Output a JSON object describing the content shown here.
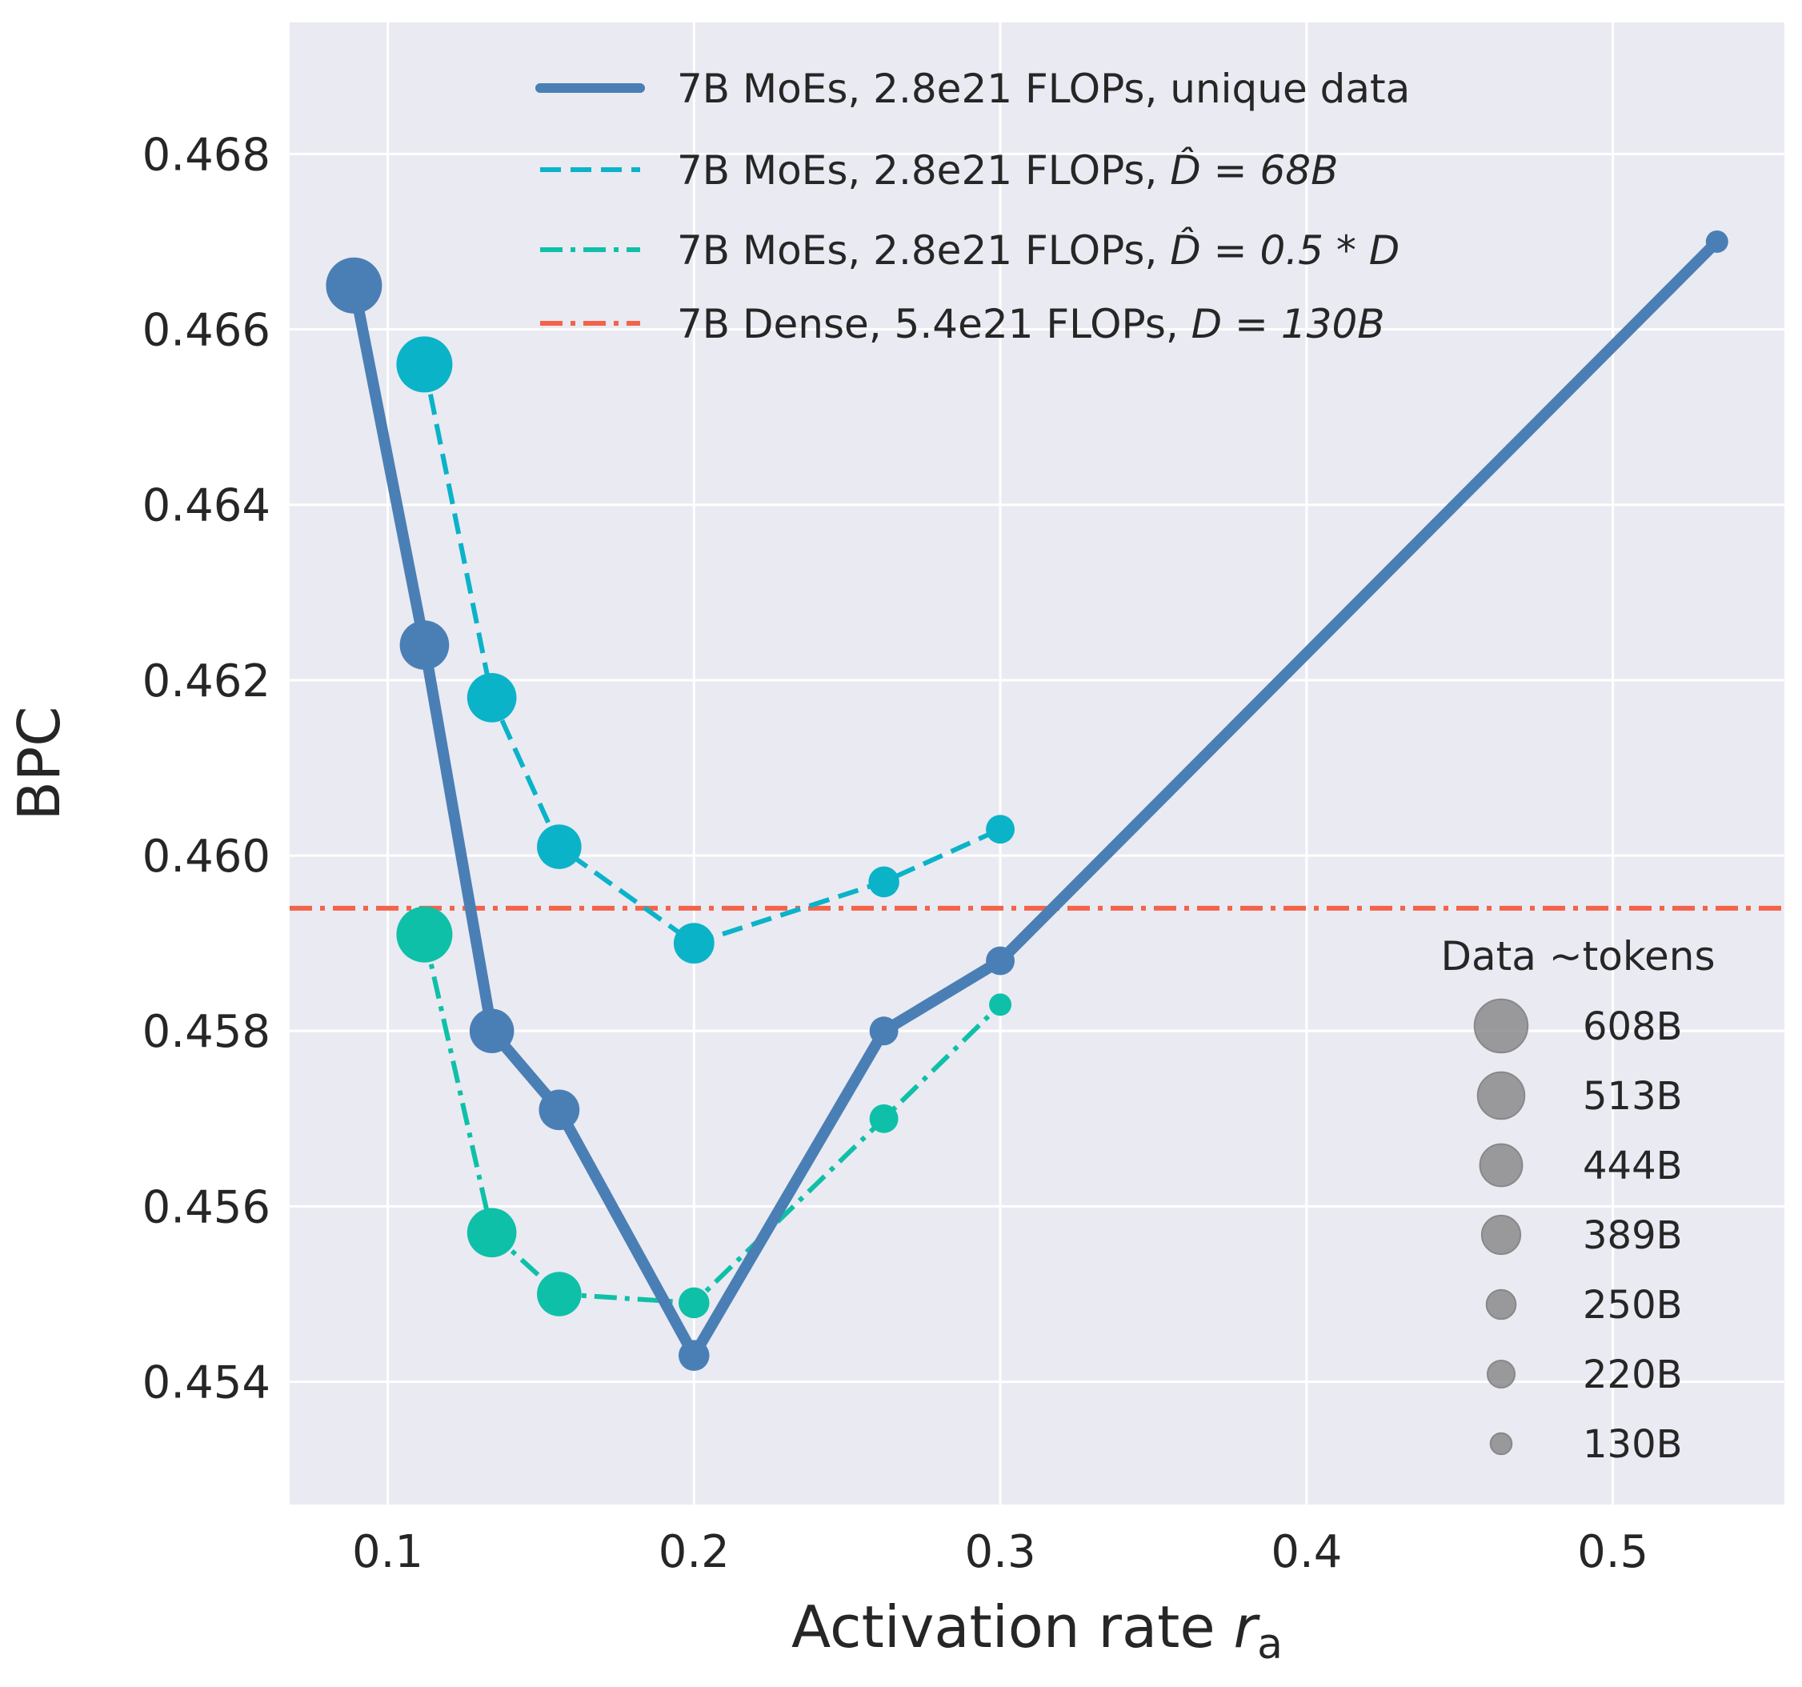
{
  "chart_data": {
    "type": "line",
    "xlabel": "Activation rate",
    "xlabel_var": "r",
    "xlabel_sub": "a",
    "ylabel": "BPC",
    "xlim": [
      0.068,
      0.556
    ],
    "ylim": [
      0.4526,
      0.4695
    ],
    "xticks": [
      0.1,
      0.2,
      0.3,
      0.4,
      0.5
    ],
    "xtick_labels": [
      "0.1",
      "0.2",
      "0.3",
      "0.4",
      "0.5"
    ],
    "yticks": [
      0.454,
      0.456,
      0.458,
      0.46,
      0.462,
      0.464,
      0.466,
      0.468
    ],
    "ytick_labels": [
      "0.454",
      "0.456",
      "0.458",
      "0.460",
      "0.462",
      "0.464",
      "0.466",
      "0.468"
    ],
    "grid": true,
    "legend_position": "top",
    "colors": {
      "background": "#eaeaf2",
      "grid": "#ffffff",
      "unique": "#4a7fb5",
      "d68": "#0bb3c8",
      "dhalf": "#0fc0a8",
      "dense": "#f3634a",
      "size_marker": "#8c8c8c"
    },
    "series": [
      {
        "name": "7B MoEs, 2.8e21 FLOPs, unique data",
        "style": "solid",
        "x": [
          0.089,
          0.112,
          0.134,
          0.156,
          0.2,
          0.262,
          0.3,
          0.534
        ],
        "y": [
          0.4665,
          0.4624,
          0.458,
          0.4571,
          0.4543,
          0.458,
          0.4588,
          0.467
        ],
        "tokens": [
          "608B",
          "513B",
          "444B",
          "389B",
          "250B",
          "220B",
          "220B",
          "130B"
        ]
      },
      {
        "name_prefix": "7B MoEs, 2.8e21 FLOPs, ",
        "name_math": "D̂ = 68B",
        "style": "dashed",
        "x": [
          0.112,
          0.134,
          0.156,
          0.2,
          0.262,
          0.3
        ],
        "y": [
          0.4656,
          0.4618,
          0.4601,
          0.459,
          0.4597,
          0.4603
        ],
        "tokens": [
          "608B",
          "513B",
          "444B",
          "389B",
          "250B",
          "220B"
        ]
      },
      {
        "name_prefix": "7B MoEs, 2.8e21 FLOPs, ",
        "name_math": "D̂ = 0.5 * D",
        "style": "dashdot",
        "x": [
          0.112,
          0.134,
          0.156,
          0.2,
          0.262,
          0.3
        ],
        "y": [
          0.4591,
          0.4557,
          0.455,
          0.4549,
          0.457,
          0.4583
        ],
        "tokens": [
          "608B",
          "513B",
          "444B",
          "250B",
          "220B",
          "130B"
        ]
      },
      {
        "name_prefix": "7B Dense, 5.4e21 FLOPs, ",
        "name_math": "D = 130B",
        "style": "dashdot-horizontal",
        "y_const": 0.4594
      }
    ],
    "size_legend": {
      "title": "Data ~tokens",
      "entries": [
        "608B",
        "513B",
        "444B",
        "389B",
        "250B",
        "220B",
        "130B"
      ],
      "values": [
        608,
        513,
        444,
        389,
        250,
        220,
        130
      ]
    }
  }
}
